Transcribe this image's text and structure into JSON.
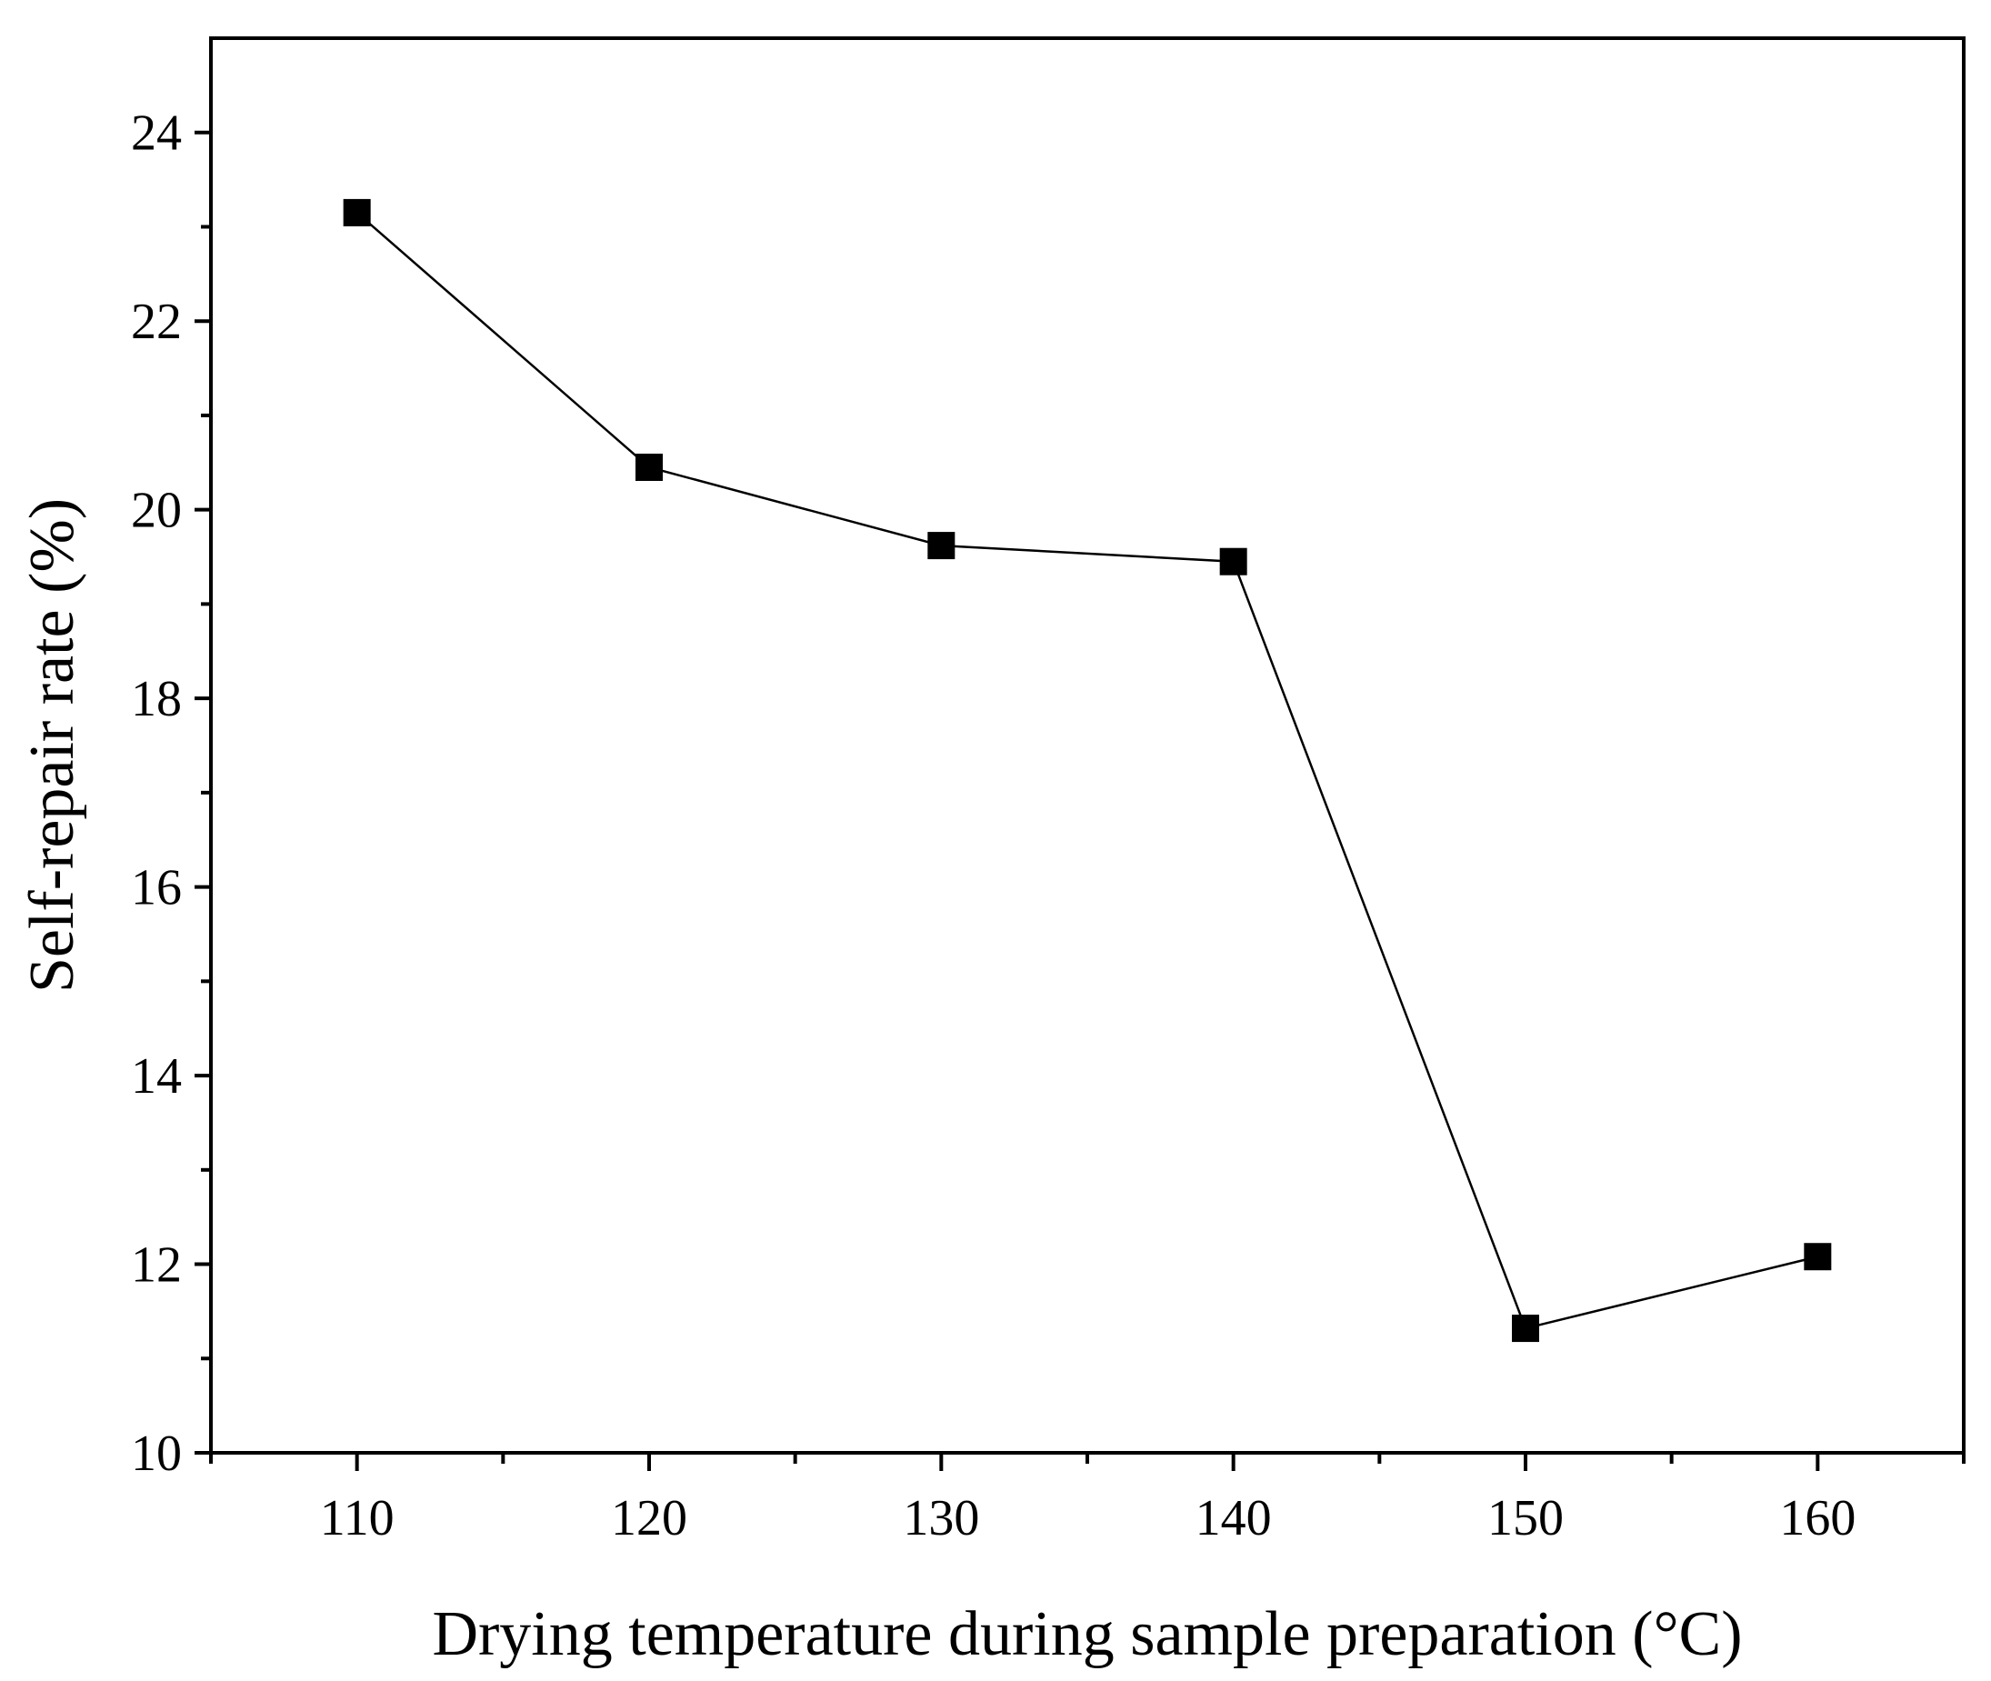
{
  "chart_data": {
    "type": "line",
    "xlabel": "Drying temperature during sample preparation (°C)",
    "ylabel": "Self-repair rate  (%)",
    "xlim": [
      105,
      165
    ],
    "ylim": [
      10,
      25
    ],
    "x_ticks": [
      110,
      120,
      130,
      140,
      150,
      160
    ],
    "y_ticks": [
      10,
      12,
      14,
      16,
      18,
      20,
      22,
      24
    ],
    "x_tick_labels": [
      "110",
      "120",
      "130",
      "140",
      "150",
      "160"
    ],
    "y_tick_labels": [
      "10",
      "12",
      "14",
      "16",
      "18",
      "20",
      "22",
      "24"
    ],
    "grid": false,
    "series": [
      {
        "marker": "square",
        "color": "#000000",
        "x": [
          110,
          120,
          130,
          140,
          150,
          160
        ],
        "y": [
          23.15,
          20.45,
          19.62,
          19.45,
          11.32,
          12.08
        ]
      }
    ]
  }
}
